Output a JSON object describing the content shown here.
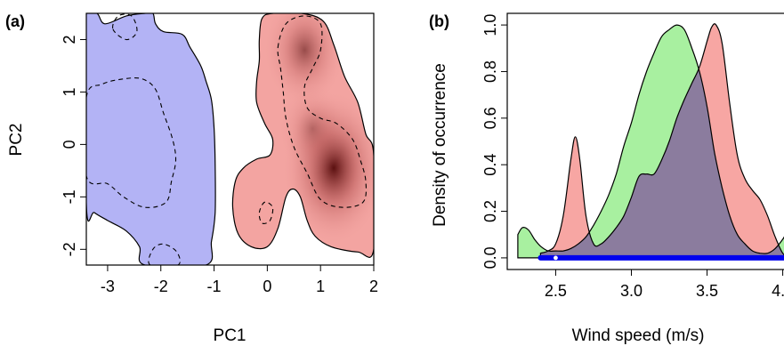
{
  "chart_data": [
    {
      "type": "contour-density",
      "panel_label": "(a)",
      "xlabel": "PC1",
      "ylabel": "PC2",
      "xlim": [
        -3.4,
        2.0
      ],
      "ylim": [
        -2.3,
        2.5
      ],
      "xticks": [
        -3,
        -2,
        -1,
        0,
        1,
        2
      ],
      "yticks": [
        -2,
        -1,
        0,
        1,
        2
      ],
      "xtick_labels": [
        "-3",
        "-2",
        "-1",
        "0",
        "1",
        "2"
      ],
      "ytick_labels": [
        "-2",
        "-1",
        "0",
        "1",
        "2"
      ],
      "regions": [
        {
          "color": "#b3b3f5",
          "outline": [
            [
              -3.4,
              2.5
            ],
            [
              -3.2,
              2.5
            ],
            [
              -3.05,
              2.3
            ],
            [
              -2.65,
              2.45
            ],
            [
              -2.3,
              2.5
            ],
            [
              -2.15,
              2.5
            ],
            [
              -2.1,
              2.3
            ],
            [
              -1.95,
              2.15
            ],
            [
              -1.6,
              2.1
            ],
            [
              -1.45,
              1.85
            ],
            [
              -1.25,
              1.5
            ],
            [
              -1.15,
              1.2
            ],
            [
              -1.05,
              0.85
            ],
            [
              -1.0,
              0.3
            ],
            [
              -0.98,
              -0.4
            ],
            [
              -0.98,
              -1.3
            ],
            [
              -1.05,
              -1.85
            ],
            [
              -1.15,
              -2.3
            ],
            [
              -2.3,
              -2.3
            ],
            [
              -2.4,
              -1.95
            ],
            [
              -2.65,
              -1.65
            ],
            [
              -3.0,
              -1.45
            ],
            [
              -3.25,
              -1.3
            ],
            [
              -3.4,
              -1.15
            ]
          ],
          "inner_contours": [
            [
              [
                -3.4,
                0.9
              ],
              [
                -3.1,
                1.15
              ],
              [
                -2.7,
                1.25
              ],
              [
                -2.35,
                1.25
              ],
              [
                -2.1,
                1.05
              ],
              [
                -1.95,
                0.6
              ],
              [
                -1.78,
                0.1
              ],
              [
                -1.72,
                -0.3
              ],
              [
                -1.8,
                -0.7
              ],
              [
                -1.9,
                -1.1
              ],
              [
                -2.3,
                -1.2
              ],
              [
                -2.7,
                -1.0
              ],
              [
                -3.0,
                -0.75
              ],
              [
                -3.4,
                -0.6
              ]
            ],
            [
              [
                -2.9,
                2.2
              ],
              [
                -2.65,
                2.0
              ],
              [
                -2.45,
                2.15
              ],
              [
                -2.55,
                2.45
              ],
              [
                -2.8,
                2.45
              ]
            ],
            [
              [
                -2.2,
                -2.3
              ],
              [
                -2.15,
                -2.0
              ],
              [
                -1.95,
                -1.9
              ],
              [
                -1.7,
                -2.05
              ],
              [
                -1.68,
                -2.3
              ]
            ]
          ]
        },
        {
          "color": "#f3a4a1",
          "peaks": [
            {
              "x": 1.25,
              "y": -0.45,
              "strength": 1.0
            },
            {
              "x": 0.7,
              "y": 1.8,
              "strength": 0.6
            },
            {
              "x": 0.85,
              "y": 0.3,
              "strength": 0.35
            }
          ],
          "outline": [
            [
              -0.1,
              2.4
            ],
            [
              0.1,
              2.5
            ],
            [
              0.65,
              2.5
            ],
            [
              1.05,
              2.35
            ],
            [
              1.25,
              1.9
            ],
            [
              1.45,
              1.3
            ],
            [
              1.7,
              0.8
            ],
            [
              1.85,
              0.2
            ],
            [
              2.0,
              -0.2
            ],
            [
              2.0,
              -2.0
            ],
            [
              1.7,
              -2.05
            ],
            [
              1.2,
              -1.95
            ],
            [
              0.9,
              -1.75
            ],
            [
              0.75,
              -1.45
            ],
            [
              0.62,
              -1.0
            ],
            [
              0.48,
              -0.85
            ],
            [
              0.35,
              -1.0
            ],
            [
              0.2,
              -1.6
            ],
            [
              0.0,
              -1.95
            ],
            [
              -0.3,
              -1.95
            ],
            [
              -0.55,
              -1.7
            ],
            [
              -0.65,
              -1.2
            ],
            [
              -0.6,
              -0.7
            ],
            [
              -0.45,
              -0.45
            ],
            [
              -0.2,
              -0.28
            ],
            [
              0.05,
              -0.2
            ],
            [
              0.1,
              0.1
            ],
            [
              -0.05,
              0.4
            ],
            [
              -0.2,
              0.8
            ],
            [
              -0.2,
              1.2
            ],
            [
              -0.15,
              1.6
            ],
            [
              -0.15,
              2.0
            ]
          ],
          "inner_contours": [
            [
              [
                0.2,
                1.85
              ],
              [
                0.35,
                2.3
              ],
              [
                0.7,
                2.45
              ],
              [
                1.0,
                2.3
              ],
              [
                1.0,
                1.8
              ],
              [
                0.85,
                1.45
              ],
              [
                0.7,
                1.1
              ],
              [
                0.75,
                0.7
              ],
              [
                1.0,
                0.5
              ],
              [
                1.3,
                0.4
              ],
              [
                1.6,
                0.1
              ],
              [
                1.75,
                -0.3
              ],
              [
                1.85,
                -0.7
              ],
              [
                1.8,
                -1.1
              ],
              [
                1.4,
                -1.2
              ],
              [
                1.0,
                -1.05
              ],
              [
                0.75,
                -0.55
              ],
              [
                0.5,
                -0.05
              ],
              [
                0.35,
                0.5
              ],
              [
                0.3,
                1.0
              ],
              [
                0.25,
                1.45
              ]
            ],
            [
              [
                -0.15,
                -1.3
              ],
              [
                -0.05,
                -1.1
              ],
              [
                0.1,
                -1.2
              ],
              [
                0.05,
                -1.45
              ],
              [
                -0.1,
                -1.5
              ]
            ]
          ]
        }
      ]
    },
    {
      "type": "area",
      "panel_label": "(b)",
      "xlabel": "Wind speed (m/s)",
      "ylabel": "Density of occurrence",
      "xlim": [
        2.18,
        4.12
      ],
      "ylim": [
        -0.05,
        1.05
      ],
      "xticks": [
        2.5,
        3.0,
        3.5,
        4.0
      ],
      "yticks": [
        0.0,
        0.2,
        0.4,
        0.6,
        0.8,
        1.0
      ],
      "xtick_labels": [
        "2.5",
        "3.0",
        "3.5",
        "4.0"
      ],
      "ytick_labels": [
        "0.0",
        "0.2",
        "0.4",
        "0.6",
        "0.8",
        "1.0"
      ],
      "overlap_color": "#8b7c9e",
      "series": [
        {
          "color": "#a8f0a0",
          "x": [
            2.25,
            2.28,
            2.32,
            2.36,
            2.4,
            2.45,
            2.5,
            2.55,
            2.6,
            2.65,
            2.7,
            2.75,
            2.8,
            2.85,
            2.9,
            2.95,
            3.0,
            3.05,
            3.1,
            3.15,
            3.2,
            3.25,
            3.3,
            3.35,
            3.4,
            3.45,
            3.5,
            3.55,
            3.6,
            3.65,
            3.7,
            3.75,
            3.8,
            3.85,
            3.9,
            3.95,
            4.0,
            4.05,
            4.1
          ],
          "y": [
            0.1,
            0.13,
            0.12,
            0.08,
            0.05,
            0.03,
            0.03,
            0.03,
            0.04,
            0.06,
            0.09,
            0.14,
            0.2,
            0.27,
            0.36,
            0.48,
            0.58,
            0.7,
            0.8,
            0.88,
            0.95,
            0.98,
            1.0,
            0.98,
            0.9,
            0.8,
            0.65,
            0.45,
            0.3,
            0.18,
            0.1,
            0.06,
            0.03,
            0.02,
            0.02,
            0.04,
            0.08,
            0.13,
            0.14
          ]
        },
        {
          "color": "#f7a6a3",
          "x": [
            2.4,
            2.45,
            2.5,
            2.55,
            2.6,
            2.63,
            2.66,
            2.7,
            2.75,
            2.8,
            2.85,
            2.9,
            2.95,
            3.0,
            3.05,
            3.1,
            3.15,
            3.2,
            3.25,
            3.3,
            3.35,
            3.4,
            3.45,
            3.5,
            3.53,
            3.56,
            3.6,
            3.65,
            3.7,
            3.75,
            3.8,
            3.85,
            3.9,
            3.95,
            4.0,
            4.05,
            4.1
          ],
          "y": [
            0.02,
            0.03,
            0.06,
            0.18,
            0.42,
            0.52,
            0.42,
            0.18,
            0.06,
            0.06,
            0.09,
            0.13,
            0.18,
            0.26,
            0.35,
            0.36,
            0.36,
            0.42,
            0.5,
            0.6,
            0.68,
            0.75,
            0.82,
            0.93,
            0.99,
            1.0,
            0.92,
            0.66,
            0.44,
            0.34,
            0.29,
            0.25,
            0.18,
            0.09,
            0.02,
            0.0,
            0.0
          ]
        }
      ],
      "rug": {
        "color": "#0000ee",
        "from": 2.4,
        "to": 4.12,
        "dot_at": 2.5
      }
    }
  ]
}
